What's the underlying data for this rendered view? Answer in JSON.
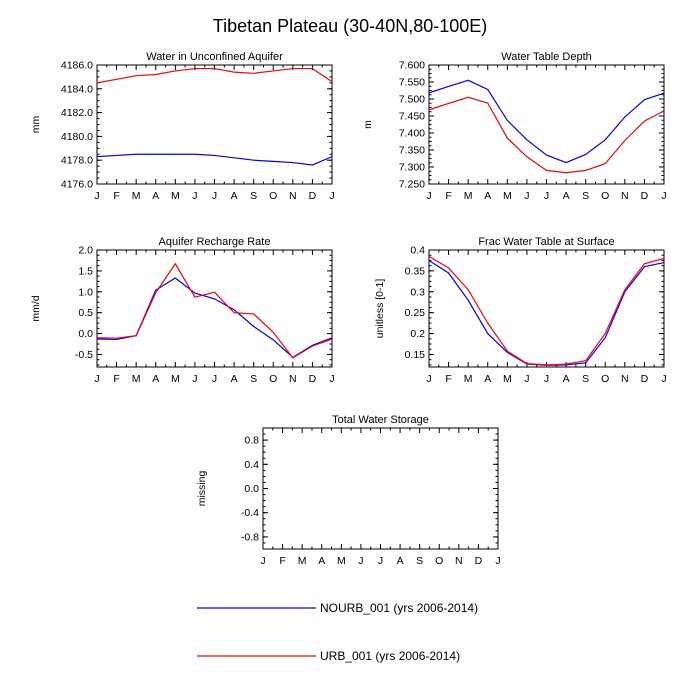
{
  "title": "Tibetan Plateau (30-40N,80-100E)",
  "colors": {
    "nourb": "#0000ff",
    "urb": "#ff0000"
  },
  "legend": [
    {
      "label": "NOURB_001 (yrs 2006-2014)",
      "color": "#0000ff"
    },
    {
      "label": "URB_001 (yrs 2006-2014)",
      "color": "#ff0000"
    }
  ],
  "chart_data": [
    {
      "type": "line",
      "title": "Water in Unconfined Aquifer",
      "ylabel": "mm",
      "categories": [
        "J",
        "F",
        "M",
        "A",
        "M",
        "J",
        "J",
        "A",
        "S",
        "O",
        "N",
        "D",
        "J"
      ],
      "ylim": [
        4176.0,
        4186.0
      ],
      "yticks": [
        4176.0,
        4178.0,
        4180.0,
        4182.0,
        4184.0,
        4186.0
      ],
      "ytick_labels": [
        "4176.0",
        "4178.0",
        "4180.0",
        "4182.0",
        "4184.0",
        "4186.0"
      ],
      "series": [
        {
          "name": "NOURB_001 (yrs 2006-2014)",
          "color": "#0000ff",
          "values": [
            4178.3,
            4178.4,
            4178.5,
            4178.5,
            4178.5,
            4178.5,
            4178.4,
            4178.2,
            4178.0,
            4177.9,
            4177.8,
            4177.6,
            4178.3
          ]
        },
        {
          "name": "URB_001 (yrs 2006-2014)",
          "color": "#ff0000",
          "values": [
            4184.5,
            4184.8,
            4185.1,
            4185.2,
            4185.5,
            4185.7,
            4185.7,
            4185.4,
            4185.3,
            4185.5,
            4185.7,
            4185.7,
            4184.6
          ]
        }
      ]
    },
    {
      "type": "line",
      "title": "Water Table Depth",
      "ylabel": "m",
      "categories": [
        "J",
        "F",
        "M",
        "A",
        "M",
        "J",
        "J",
        "A",
        "S",
        "O",
        "N",
        "D",
        "J"
      ],
      "ylim": [
        7.25,
        7.6
      ],
      "yticks": [
        7.25,
        7.3,
        7.35,
        7.4,
        7.45,
        7.5,
        7.55,
        7.6
      ],
      "ytick_labels": [
        "7.250",
        "7.300",
        "7.350",
        "7.400",
        "7.450",
        "7.500",
        "7.550",
        "7.600"
      ],
      "series": [
        {
          "name": "NOURB_001 (yrs 2006-2014)",
          "color": "#0000ff",
          "values": [
            7.518,
            7.537,
            7.555,
            7.528,
            7.437,
            7.38,
            7.335,
            7.313,
            7.337,
            7.38,
            7.447,
            7.498,
            7.517
          ]
        },
        {
          "name": "URB_001 (yrs 2006-2014)",
          "color": "#ff0000",
          "values": [
            7.468,
            7.487,
            7.505,
            7.488,
            7.385,
            7.33,
            7.29,
            7.283,
            7.29,
            7.31,
            7.378,
            7.435,
            7.465
          ]
        }
      ]
    },
    {
      "type": "line",
      "title": "Aquifer Recharge Rate",
      "ylabel": "mm/d",
      "categories": [
        "J",
        "F",
        "M",
        "A",
        "M",
        "J",
        "J",
        "A",
        "S",
        "O",
        "N",
        "D",
        "J"
      ],
      "ylim": [
        -0.8,
        2.0
      ],
      "yticks": [
        -0.5,
        0.0,
        0.5,
        1.0,
        1.5,
        2.0
      ],
      "ytick_labels": [
        "-0.5",
        "0.0",
        "0.5",
        "1.0",
        "1.5",
        "2.0"
      ],
      "series": [
        {
          "name": "NOURB_001 (yrs 2006-2014)",
          "color": "#0000ff",
          "values": [
            -0.13,
            -0.14,
            -0.05,
            1.04,
            1.33,
            0.97,
            0.83,
            0.57,
            0.17,
            -0.15,
            -0.57,
            -0.28,
            -0.1
          ]
        },
        {
          "name": "URB_001 (yrs 2006-2014)",
          "color": "#ff0000",
          "values": [
            -0.1,
            -0.11,
            -0.05,
            0.98,
            1.67,
            0.87,
            0.99,
            0.5,
            0.47,
            0.03,
            -0.58,
            -0.3,
            -0.13
          ]
        }
      ]
    },
    {
      "type": "line",
      "title": "Frac Water Table at Surface",
      "ylabel": "unitless [0-1]",
      "categories": [
        "J",
        "F",
        "M",
        "A",
        "M",
        "J",
        "J",
        "A",
        "S",
        "O",
        "N",
        "D",
        "J"
      ],
      "ylim": [
        0.12,
        0.4
      ],
      "yticks": [
        0.15,
        0.2,
        0.25,
        0.3,
        0.35,
        0.4
      ],
      "ytick_labels": [
        "0.15",
        "0.2",
        "0.25",
        "0.3",
        "0.35",
        "0.4"
      ],
      "series": [
        {
          "name": "NOURB_001 (yrs 2006-2014)",
          "color": "#0000ff",
          "values": [
            0.375,
            0.345,
            0.28,
            0.2,
            0.155,
            0.127,
            0.124,
            0.125,
            0.13,
            0.19,
            0.3,
            0.36,
            0.37
          ]
        },
        {
          "name": "URB_001 (yrs 2006-2014)",
          "color": "#ff0000",
          "values": [
            0.385,
            0.357,
            0.305,
            0.225,
            0.158,
            0.128,
            0.125,
            0.127,
            0.135,
            0.2,
            0.305,
            0.367,
            0.38
          ]
        }
      ]
    },
    {
      "type": "line",
      "title": "Total Water Storage",
      "ylabel": "missing",
      "categories": [
        "J",
        "F",
        "M",
        "A",
        "M",
        "J",
        "J",
        "A",
        "S",
        "O",
        "N",
        "D",
        "J"
      ],
      "ylim": [
        -1.0,
        1.0
      ],
      "yticks": [
        -0.8,
        -0.4,
        0.0,
        0.4,
        0.8
      ],
      "ytick_labels": [
        "-0.8",
        "-0.4",
        "0.0",
        "0.4",
        "0.8"
      ],
      "series": []
    }
  ]
}
